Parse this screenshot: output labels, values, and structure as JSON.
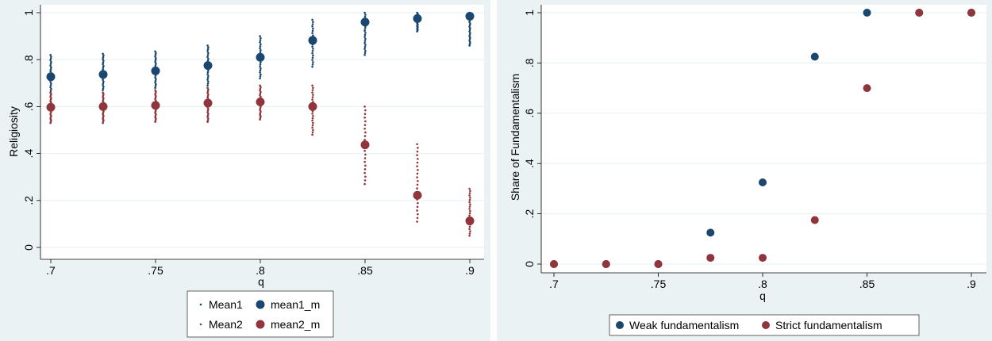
{
  "chart_data": [
    {
      "type": "scatter",
      "xlabel": "q",
      "ylabel": "Religiosity",
      "xlim": [
        0.7,
        0.9
      ],
      "ylim": [
        0,
        1
      ],
      "xticks": [
        ".7",
        ".75",
        ".8",
        ".85",
        ".9"
      ],
      "yticks": [
        "0",
        ".2",
        ".4",
        ".6",
        ".8",
        "1"
      ],
      "grid": true,
      "legend_position": "bottom",
      "x": [
        0.7,
        0.725,
        0.75,
        0.775,
        0.8,
        0.825,
        0.85,
        0.875,
        0.9
      ],
      "series": [
        {
          "name": "Mean1",
          "style": "small",
          "color": "#1a476f",
          "ranges": [
            [
              0.66,
              0.82
            ],
            [
              0.67,
              0.825
            ],
            [
              0.68,
              0.835
            ],
            [
              0.69,
              0.86
            ],
            [
              0.72,
              0.9
            ],
            [
              0.77,
              0.97
            ],
            [
              0.82,
              1.0
            ],
            [
              0.92,
              1.0
            ],
            [
              0.86,
              1.0
            ]
          ]
        },
        {
          "name": "mean1_m",
          "style": "large",
          "color": "#1a476f",
          "values": [
            0.727,
            0.737,
            0.752,
            0.775,
            0.81,
            0.882,
            0.96,
            0.975,
            0.985
          ]
        },
        {
          "name": "Mean2",
          "style": "small",
          "color": "#90353b",
          "ranges": [
            [
              0.53,
              0.66
            ],
            [
              0.53,
              0.66
            ],
            [
              0.535,
              0.67
            ],
            [
              0.535,
              0.68
            ],
            [
              0.545,
              0.69
            ],
            [
              0.48,
              0.69
            ],
            [
              0.27,
              0.6
            ],
            [
              0.11,
              0.44
            ],
            [
              0.05,
              0.25
            ]
          ]
        },
        {
          "name": "mean2_m",
          "style": "large",
          "color": "#90353b",
          "values": [
            0.597,
            0.6,
            0.605,
            0.615,
            0.62,
            0.6,
            0.437,
            0.222,
            0.113
          ]
        }
      ]
    },
    {
      "type": "scatter",
      "xlabel": "q",
      "ylabel": "Share of Fundamentalism",
      "xlim": [
        0.7,
        0.9
      ],
      "ylim": [
        0,
        1
      ],
      "xticks": [
        ".7",
        ".75",
        ".8",
        ".85",
        ".9"
      ],
      "yticks": [
        "0",
        ".2",
        ".4",
        ".6",
        ".8",
        "1"
      ],
      "grid": true,
      "legend_position": "bottom",
      "x": [
        0.7,
        0.725,
        0.75,
        0.775,
        0.8,
        0.825,
        0.85,
        0.875,
        0.9
      ],
      "series": [
        {
          "name": "Weak fundamentalism",
          "color": "#1a476f",
          "values": [
            0,
            0,
            0,
            0.125,
            0.325,
            0.825,
            1,
            1,
            1
          ]
        },
        {
          "name": "Strict fundamentalism",
          "color": "#90353b",
          "values": [
            0,
            0,
            0,
            0.025,
            0.025,
            0.175,
            0.7,
            1,
            1
          ]
        }
      ]
    }
  ]
}
